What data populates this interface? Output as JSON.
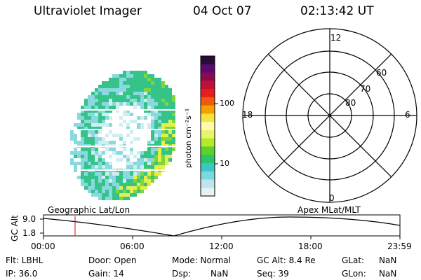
{
  "header": {
    "instrument": "Ultraviolet Imager",
    "date": "04 Oct 07",
    "time": "02:13:42 UT"
  },
  "colorbar": {
    "unit_label": "photon cm⁻²s⁻¹",
    "ticks": [
      "100",
      "10"
    ],
    "colors": [
      "#2a0a3a",
      "#5a0a70",
      "#8a0a50",
      "#c0103a",
      "#e81c1c",
      "#f05a0c",
      "#f5a000",
      "#f7e43a",
      "#fffab0",
      "#e8f56a",
      "#b4ea2a",
      "#5ad22e",
      "#2ec46a",
      "#3ac8c0",
      "#7ad8e2",
      "#bce6ea",
      "#e6f2f4"
    ]
  },
  "auroral_image": {
    "colors": {
      "faint": "#cfeef0",
      "low": "#8ad8e0",
      "mid": "#36c38a",
      "high": "#7ed63a",
      "peak": "#e4ef4a"
    }
  },
  "polar_plot": {
    "labels": {
      "top": "12",
      "bottom": "0",
      "left": "18",
      "right": "6"
    },
    "rings": [
      "60",
      "70",
      "80"
    ]
  },
  "timeline": {
    "left_caption": "Geographic Lat/Lon",
    "right_caption": "Apex  MLat/MLT",
    "axis_title": "GC Alt",
    "y_ticks": [
      "9.0",
      "1.8"
    ],
    "x_ticks": [
      "00:00",
      "06:00",
      "12:00",
      "18:00",
      "23:59"
    ],
    "marker_color": "#e03030"
  },
  "status": {
    "row1": {
      "flt": "Flt: LBHL",
      "door": "Door: Open",
      "mode": "Mode: Normal",
      "gcalt": "GC Alt: 8.4 Re",
      "glat_label": "GLat:",
      "glat_value": "NaN"
    },
    "row2": {
      "ip": "IP: 36.0",
      "gain": "Gain: 14",
      "dsp_label": "Dsp:",
      "dsp_value": "NaN",
      "seq": "Seq: 39",
      "glon_label": "GLon:",
      "glon_value": "NaN"
    }
  }
}
